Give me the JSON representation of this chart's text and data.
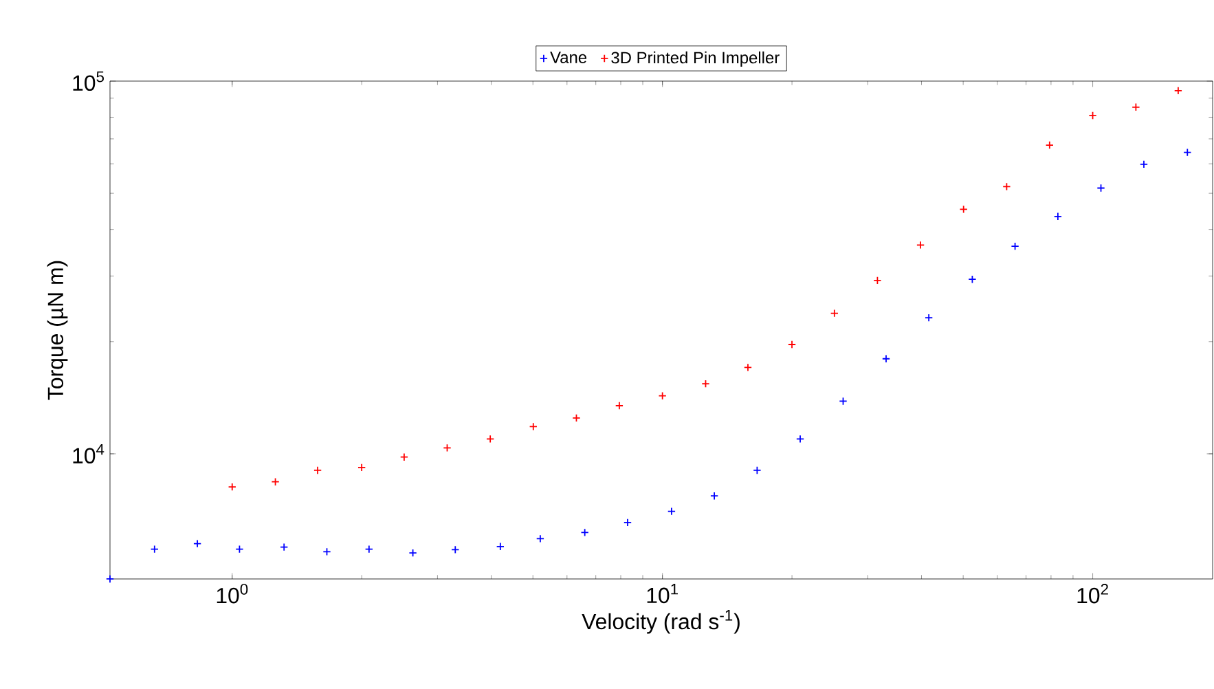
{
  "chart_data": {
    "type": "scatter",
    "xlabel": "Velocity (rad s$^{-1}$)",
    "ylabel": "Torque (µN m)",
    "log": "xy",
    "marker": "cross",
    "legend": "top",
    "grid": false,
    "xlim": [
      0.52,
      190
    ],
    "ylim": [
      4615,
      100000
    ],
    "xticks": [
      {
        "value": 1,
        "label": "10$^{0}$"
      },
      {
        "value": 10,
        "label": "10$^{1}$"
      },
      {
        "value": 100,
        "label": "10$^{2}$"
      }
    ],
    "yticks": [
      {
        "value": 10000,
        "label": "10$^{4}$"
      },
      {
        "value": 100000,
        "label": "10$^{5}$"
      }
    ],
    "series": [
      {
        "name": "Vane",
        "color": "#0000ff",
        "x": [
          0.52,
          0.66,
          0.83,
          1.04,
          1.32,
          1.66,
          2.08,
          2.63,
          3.3,
          4.2,
          5.2,
          6.6,
          8.3,
          10.5,
          13.2,
          16.6,
          20.9,
          26.3,
          33.1,
          41.6,
          52.5,
          66,
          83,
          104.5,
          131.5,
          166
        ],
        "values": [
          4615,
          5550,
          5740,
          5550,
          5620,
          5460,
          5550,
          5420,
          5530,
          5640,
          5920,
          6150,
          6540,
          7010,
          7710,
          9030,
          10960,
          13840,
          17990,
          23170,
          29390,
          36060,
          43340,
          51650,
          59840,
          64400
        ]
      },
      {
        "name": "3D Printed Pin Impeller",
        "color": "#ff0000",
        "x": [
          1,
          1.26,
          1.58,
          2,
          2.51,
          3.16,
          3.98,
          5.01,
          6.31,
          7.94,
          10,
          12.6,
          15.8,
          20,
          25.1,
          31.6,
          39.8,
          50.1,
          63.1,
          79.4,
          100,
          126,
          158
        ],
        "values": [
          8150,
          8410,
          9030,
          9190,
          9800,
          10370,
          10960,
          11830,
          12480,
          13460,
          14310,
          15410,
          17050,
          19650,
          23830,
          29180,
          36330,
          45290,
          52120,
          67350,
          80870,
          85160,
          94260
        ]
      }
    ]
  }
}
